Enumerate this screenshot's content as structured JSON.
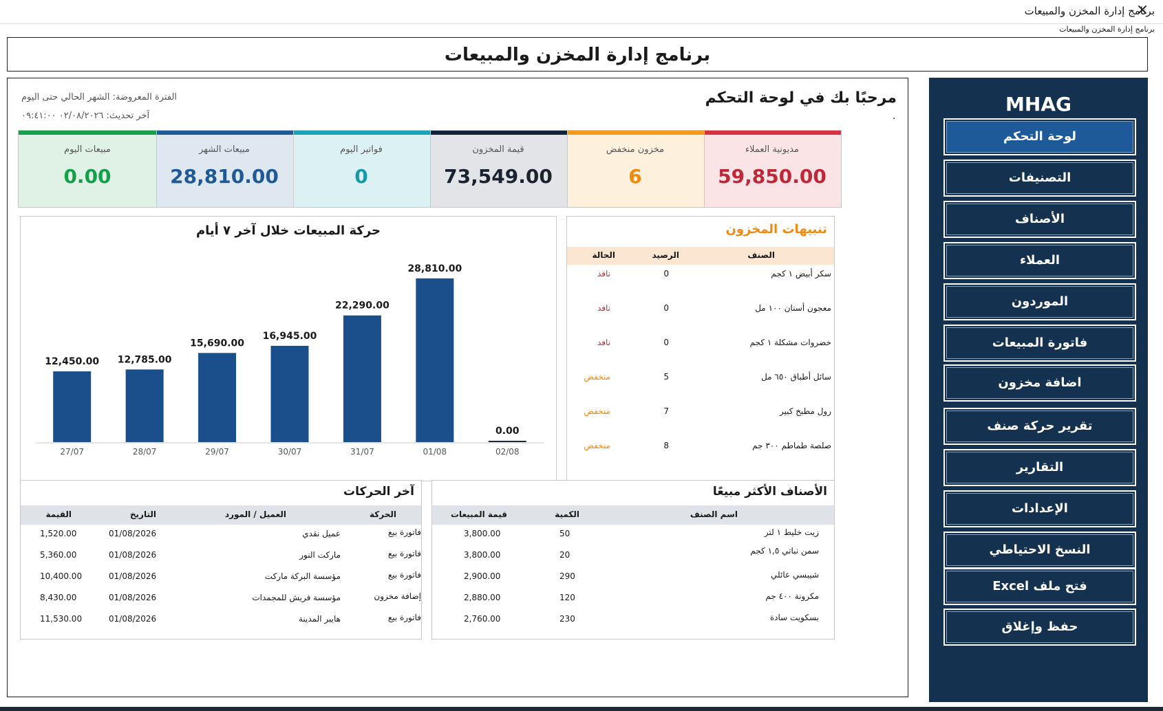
{
  "window": {
    "title": "برنامج إدارة المخزن والمبيعات",
    "subtitle": "برنامج إدارة المخزن والمبيعات",
    "close_icon": "×"
  },
  "header": {
    "title": "برنامج إدارة المخزن والمبيعات"
  },
  "sidebar": {
    "logo": "MHAG",
    "items": [
      {
        "label": "لوحة التحكم",
        "active": true
      },
      {
        "label": "التصنيفات"
      },
      {
        "label": "الأصناف"
      },
      {
        "label": "العملاء"
      },
      {
        "label": "الموردون"
      },
      {
        "label": "فاتورة المبيعات"
      },
      {
        "label": "اضافة مخزون"
      },
      {
        "label": "تقرير حركة صنف"
      },
      {
        "label": "التقارير"
      },
      {
        "label": "الإعدادات"
      },
      {
        "label": "النسخ الاحتياطي"
      },
      {
        "label": "فتح ملف Excel"
      },
      {
        "label": "حفظ وإغلاق"
      }
    ]
  },
  "dashboard": {
    "welcome": "مرحبًا بك في لوحة التحكم",
    "dot": "٠",
    "period": "الفترة المعروضة: الشهر الحالي حتى اليوم",
    "updated": "آخر تحديث: ٠٢/٠٨/٢٠٢٦ ٠٩:٤١:٠٠",
    "kpis": [
      {
        "label": "مديونية العملاء",
        "value": "59,850.00",
        "accent": "#d9313e",
        "bg": "#fbe4e6",
        "color": "#c0283a"
      },
      {
        "label": "مخزون منخفض",
        "value": "6",
        "accent": "#f39a1c",
        "bg": "#fdf0dc",
        "color": "#f08a0c"
      },
      {
        "label": "قيمة المخزون",
        "value": "73,549.00",
        "accent": "#11213a",
        "bg": "#e2e4e8",
        "color": "#1b2230"
      },
      {
        "label": "فواتير اليوم",
        "value": "0",
        "accent": "#1aa3b4",
        "bg": "#dcf1f3",
        "color": "#1599ab"
      },
      {
        "label": "مبيعات الشهر",
        "value": "28,810.00",
        "accent": "#1f5996",
        "bg": "#dfe7f0",
        "color": "#1f5996"
      },
      {
        "label": "مبيعات اليوم",
        "value": "0.00",
        "accent": "#15a04a",
        "bg": "#dff2e5",
        "color": "#13a04a"
      }
    ]
  },
  "chart_data": {
    "type": "bar",
    "title": "حركة المبيعات خلال آخر ٧ أيام",
    "categories": [
      "27/07",
      "28/07",
      "29/07",
      "30/07",
      "31/07",
      "01/08",
      "02/08"
    ],
    "values": [
      12450,
      12785,
      15690,
      16945,
      22290,
      28810,
      0
    ],
    "value_labels": [
      "12,450.00",
      "12,785.00",
      "15,690.00",
      "16,945.00",
      "22,290.00",
      "28,810.00",
      "0.00"
    ],
    "ylim": [
      0,
      30000
    ],
    "bar_color": "#1b4f8c",
    "grid": false
  },
  "stock_alerts": {
    "title": "تنبيهات المخزون",
    "headers": {
      "item": "الصنف",
      "balance": "الرصيد",
      "status": "الحالة"
    },
    "rows": [
      {
        "item": "سكر أبيض ١ كجم",
        "balance": "0",
        "status": "نافد",
        "color": "#d0262f"
      },
      {
        "item": "معجون أسنان ١٠٠ مل",
        "balance": "0",
        "status": "نافد",
        "color": "#d0262f"
      },
      {
        "item": "خضروات مشكلة ١ كجم",
        "balance": "0",
        "status": "نافد",
        "color": "#d0262f"
      },
      {
        "item": "سائل أطباق ٦٥٠ مل",
        "balance": "5",
        "status": "منخفض",
        "color": "#ef8a12"
      },
      {
        "item": "رول مطبخ كبير",
        "balance": "7",
        "status": "منخفض",
        "color": "#ef8a12"
      },
      {
        "item": "صلصة طماطم ٣٠٠ جم",
        "balance": "8",
        "status": "منخفض",
        "color": "#ef8a12"
      }
    ]
  },
  "recent_moves": {
    "title": "آخر الحركات",
    "headers": {
      "type": "الحركة",
      "party": "العميل / المورد",
      "date": "التاريخ",
      "value": "القيمة"
    },
    "rows": [
      {
        "type": "فاتورة بيع",
        "party": "عميل نقدي",
        "date": "01/08/2026",
        "value": "1,520.00"
      },
      {
        "type": "فاتورة بيع",
        "party": "ماركت النور",
        "date": "01/08/2026",
        "value": "5,360.00"
      },
      {
        "type": "فاتورة بيع",
        "party": "مؤسسة البركة ماركت",
        "date": "01/08/2026",
        "value": "10,400.00"
      },
      {
        "type": "إضافة مخزون",
        "party": "مؤسسة فريش للمجمدات",
        "date": "01/08/2026",
        "value": "8,430.00"
      },
      {
        "type": "فاتورة بيع",
        "party": "هايبر المدينة",
        "date": "01/08/2026",
        "value": "11,530.00"
      }
    ]
  },
  "top_items": {
    "title": "الأصناف الأكثر مبيعًا",
    "headers": {
      "name": "اسم الصنف",
      "qty": "الكمية",
      "sales": "قيمة المبيعات"
    },
    "rows": [
      {
        "name": "زيت خليط ١ لتر",
        "qty": "50",
        "sales": "3,800.00"
      },
      {
        "name": "سمن نباتي ١,٥ كجم",
        "qty": "20",
        "sales": "3,800.00"
      },
      {
        "name": "شيبسي عائلي",
        "qty": "290",
        "sales": "2,900.00"
      },
      {
        "name": "مكرونة ٤٠٠ جم",
        "qty": "120",
        "sales": "2,880.00"
      },
      {
        "name": "بسكويت سادة",
        "qty": "230",
        "sales": "2,760.00"
      }
    ]
  }
}
